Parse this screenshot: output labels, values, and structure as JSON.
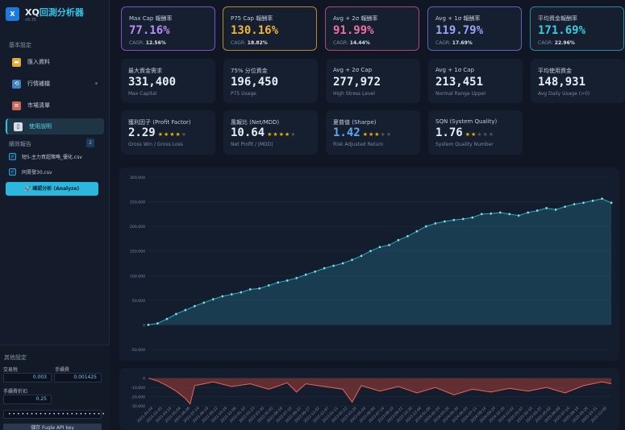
{
  "app": {
    "logo": "X",
    "title_prefix": "XQ",
    "title_main": "回測分析器",
    "version": "v6.35"
  },
  "sidebar": {
    "section_basic": "基本設定",
    "items": [
      {
        "label": "匯入資料",
        "icon": "folder-icon"
      },
      {
        "label": "行情補檔",
        "icon": "sync-icon"
      },
      {
        "label": "市場清單",
        "icon": "clipboard-icon"
      },
      {
        "label": "使用說明",
        "icon": "book-icon"
      }
    ],
    "section_reports": "績效報告",
    "reports_count": "2",
    "files": [
      "短5-主力買超策略_優化.csv",
      "同賣發30.csv"
    ],
    "analyze_label": "🚀 確認分析 (Analyze)"
  },
  "settings": {
    "title": "其他設定",
    "tax_label": "交易稅",
    "tax_value": "0.003",
    "fee_label": "手續費",
    "fee_value": "0.001425",
    "discount_label": "手續費折扣",
    "discount_value": "0.25",
    "api_key_mask": "••••••••••••••••••••••",
    "save_label": "儲存 Fugle API key"
  },
  "cards_row1": [
    {
      "label": "Max Cap 報酬率",
      "value": "77.16%",
      "cagr_label": "CAGR:",
      "cagr": "12.56%",
      "color": "#b98cf7",
      "border": "#7a52c4"
    },
    {
      "label": "P75 Cap 報酬率",
      "value": "130.16%",
      "cagr_label": "CAGR:",
      "cagr": "18.82%",
      "color": "#f1b43a",
      "border": "#b88a2c"
    },
    {
      "label": "Avg + 2σ 報酬率",
      "value": "91.99%",
      "cagr_label": "CAGR:",
      "cagr": "14.44%",
      "color": "#f06fa6",
      "border": "#a84a78"
    },
    {
      "label": "Avg + 1σ 報酬率",
      "value": "119.79%",
      "cagr_label": "CAGR:",
      "cagr": "17.69%",
      "color": "#9aa3f5",
      "border": "#5d64b8"
    },
    {
      "label": "平均資金報酬率",
      "value": "171.69%",
      "cagr_label": "CAGR:",
      "cagr": "22.96%",
      "color": "#37cde0",
      "border": "#268a9a"
    }
  ],
  "cards_row2": [
    {
      "label": "最大資金需求",
      "value": "331,400",
      "sub": "Max Capital"
    },
    {
      "label": "75% 分位資金",
      "value": "196,450",
      "sub": "P75 Usage"
    },
    {
      "label": "Avg + 2σ Cap",
      "value": "277,972",
      "sub": "High Stress Level"
    },
    {
      "label": "Avg + 1σ Cap",
      "value": "213,451",
      "sub": "Normal Range Upper"
    },
    {
      "label": "平均使用資金",
      "value": "148,931",
      "sub": "Avg Daily Usage (>0)"
    }
  ],
  "cards_row3": [
    {
      "label": "獲利因子 (Profit Factor)",
      "value": "2.29",
      "stars": 4,
      "sub": "Gross Win / Gross Loss",
      "color": "#e9eef6"
    },
    {
      "label": "風報比 (Net/MDD)",
      "value": "10.64",
      "stars": 4,
      "sub": "Net Profit / |MDD|",
      "color": "#e9eef6"
    },
    {
      "label": "夏普值 (Sharpe)",
      "value": "1.42",
      "stars": 3,
      "sub": "Risk Adjusted Return",
      "color": "#5aa9f5"
    },
    {
      "label": "SQN (System Quality)",
      "value": "1.76",
      "stars": 2,
      "sub": "System Quality Number",
      "color": "#e9eef6"
    }
  ],
  "chart_data": [
    {
      "type": "area",
      "name": "equity",
      "ylim": [
        -50000,
        300000
      ],
      "yticks": [
        "300,000",
        "250,000",
        "200,000",
        "150,000",
        "100,000",
        "50,000",
        "0",
        "-50,000"
      ],
      "points": [
        [
          0,
          0
        ],
        [
          0.02,
          3000
        ],
        [
          0.04,
          12000
        ],
        [
          0.06,
          22000
        ],
        [
          0.08,
          30000
        ],
        [
          0.1,
          38000
        ],
        [
          0.12,
          45000
        ],
        [
          0.14,
          52000
        ],
        [
          0.16,
          58000
        ],
        [
          0.18,
          62000
        ],
        [
          0.2,
          66000
        ],
        [
          0.22,
          72000
        ],
        [
          0.24,
          74000
        ],
        [
          0.26,
          80000
        ],
        [
          0.28,
          86000
        ],
        [
          0.3,
          90000
        ],
        [
          0.32,
          95000
        ],
        [
          0.34,
          102000
        ],
        [
          0.36,
          108000
        ],
        [
          0.38,
          115000
        ],
        [
          0.4,
          120000
        ],
        [
          0.42,
          125000
        ],
        [
          0.44,
          132000
        ],
        [
          0.46,
          140000
        ],
        [
          0.48,
          150000
        ],
        [
          0.5,
          158000
        ],
        [
          0.52,
          162000
        ],
        [
          0.54,
          172000
        ],
        [
          0.56,
          180000
        ],
        [
          0.58,
          190000
        ],
        [
          0.6,
          200000
        ],
        [
          0.62,
          206000
        ],
        [
          0.64,
          210000
        ],
        [
          0.66,
          213000
        ],
        [
          0.68,
          215000
        ],
        [
          0.7,
          218000
        ],
        [
          0.72,
          225000
        ],
        [
          0.74,
          226000
        ],
        [
          0.76,
          228000
        ],
        [
          0.78,
          225000
        ],
        [
          0.8,
          222000
        ],
        [
          0.82,
          228000
        ],
        [
          0.84,
          232000
        ],
        [
          0.86,
          237000
        ],
        [
          0.88,
          234000
        ],
        [
          0.9,
          240000
        ],
        [
          0.92,
          245000
        ],
        [
          0.94,
          248000
        ],
        [
          0.96,
          252000
        ],
        [
          0.98,
          256000
        ],
        [
          1,
          248000
        ]
      ]
    },
    {
      "type": "area",
      "name": "drawdown",
      "ylim": [
        -30000,
        5000
      ],
      "yticks": [
        "0",
        "-10,000",
        "-20,000",
        "-30,000"
      ],
      "xticks": [
        "2021-01-04",
        "2021-02-05",
        "2021-03-19",
        "2021-05-04",
        "2021-06-08",
        "2021-07-14",
        "2021-08-18",
        "2021-09-22",
        "2021-10-29",
        "2021-12-06",
        "2022-01-10",
        "2022-02-23",
        "2022-03-30",
        "2022-05-05",
        "2022-06-10",
        "2022-07-18",
        "2022-08-22",
        "2022-09-27",
        "2022-11-02",
        "2022-12-07",
        "2023-01-11",
        "2023-02-22",
        "2023-03-29",
        "2023-05-04",
        "2023-06-09",
        "2023-07-14",
        "2023-08-18",
        "2023-09-22",
        "2023-10-30",
        "2023-12-04",
        "2024-01-08",
        "2024-02-20",
        "2024-03-26",
        "2024-04-30",
        "2024-06-05",
        "2024-07-11",
        "2024-08-14",
        "2024-09-20",
        "2024-10-28",
        "2024-12-02",
        "2025-01-07",
        "2025-02-18",
        "2025-03-25",
        "2025-05-02",
        "2025-06-09",
        "2025-07-14",
        "2025-08-18",
        "2025-09-26",
        "2025-10-31",
        "2025-12-08"
      ],
      "points": [
        [
          0,
          0
        ],
        [
          0.02,
          -3000
        ],
        [
          0.04,
          -8000
        ],
        [
          0.06,
          -14000
        ],
        [
          0.08,
          -22000
        ],
        [
          0.09,
          -28000
        ],
        [
          0.1,
          -8000
        ],
        [
          0.14,
          -4000
        ],
        [
          0.18,
          -9000
        ],
        [
          0.22,
          -6000
        ],
        [
          0.26,
          -12000
        ],
        [
          0.3,
          -5000
        ],
        [
          0.32,
          -15000
        ],
        [
          0.34,
          -6000
        ],
        [
          0.38,
          -9000
        ],
        [
          0.42,
          -12000
        ],
        [
          0.44,
          -26000
        ],
        [
          0.46,
          -8000
        ],
        [
          0.5,
          -14000
        ],
        [
          0.54,
          -9000
        ],
        [
          0.58,
          -16000
        ],
        [
          0.62,
          -10000
        ],
        [
          0.66,
          -18000
        ],
        [
          0.7,
          -12000
        ],
        [
          0.74,
          -15000
        ],
        [
          0.78,
          -11000
        ],
        [
          0.82,
          -14000
        ],
        [
          0.86,
          -10000
        ],
        [
          0.9,
          -16000
        ],
        [
          0.94,
          -8000
        ],
        [
          0.98,
          -4000
        ],
        [
          1,
          -6000
        ]
      ]
    }
  ]
}
